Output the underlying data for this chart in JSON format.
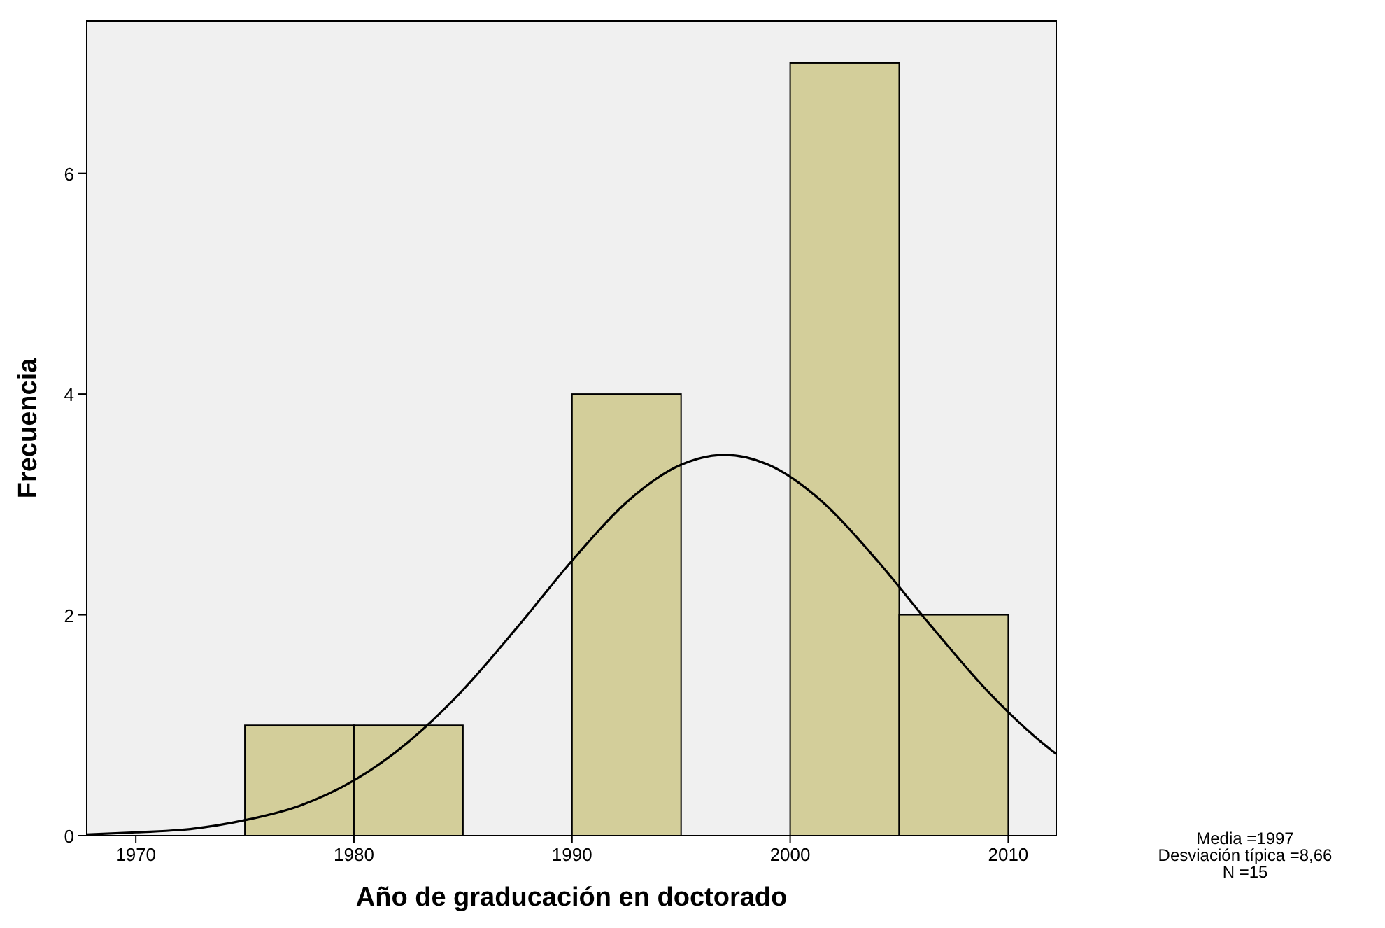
{
  "chart_data": {
    "type": "histogram",
    "xlabel": "Año de graducación en doctorado",
    "ylabel": "Frecuencia",
    "xlim": [
      1967.75,
      2012.2
    ],
    "xticks": [
      1970,
      1980,
      1990,
      2000,
      2010
    ],
    "ylim": [
      0,
      7.38
    ],
    "yticks": [
      0,
      2,
      4,
      6
    ],
    "grid": false,
    "series": [
      {
        "color": "#d3ce9a",
        "bins": [
          1975,
          1980,
          1985,
          1990,
          1995,
          2000,
          2005,
          2010
        ],
        "values": [
          1,
          1,
          0,
          4,
          0,
          7,
          2
        ]
      },
      {
        "type": "line",
        "color": "#000000",
        "x": [
          1967.75,
          1970,
          1972.5,
          1975,
          1977.5,
          1980,
          1982.5,
          1985,
          1987.5,
          1990,
          1992.5,
          1995,
          1997,
          1999,
          2001.5,
          2004,
          2006.5,
          2009,
          2011.5,
          2012.2
        ],
        "values": [
          0.01,
          0.03,
          0.06,
          0.14,
          0.27,
          0.5,
          0.85,
          1.32,
          1.89,
          2.49,
          3.02,
          3.36,
          3.45,
          3.36,
          3.02,
          2.49,
          1.89,
          1.32,
          0.85,
          0.74
        ]
      }
    ],
    "annotations": [
      "Media =1997",
      "Desviación típica =8,66",
      "N =15"
    ]
  }
}
